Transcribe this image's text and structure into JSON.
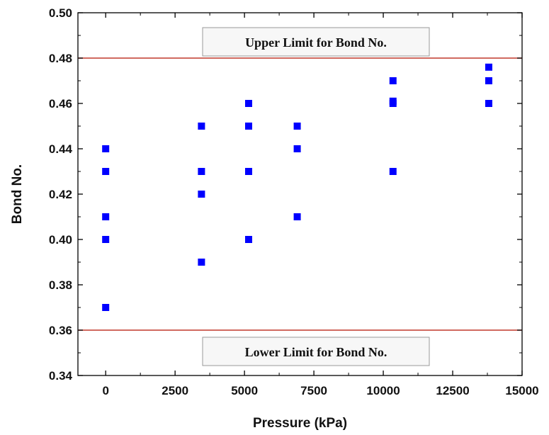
{
  "chart_data": {
    "type": "scatter",
    "title": "",
    "xlabel": "Pressure (kPa)",
    "ylabel": "Bond No.",
    "xlim": [
      -1000,
      15000
    ],
    "ylim": [
      0.34,
      0.5
    ],
    "xticks": [
      0,
      2500,
      5000,
      7500,
      10000,
      12500,
      15000
    ],
    "xtick_labels": [
      "0",
      "2500",
      "5000",
      "7500",
      "10000",
      "12500",
      "15000"
    ],
    "yticks": [
      0.34,
      0.36,
      0.38,
      0.4,
      0.42,
      0.44,
      0.46,
      0.48,
      0.5
    ],
    "ytick_labels": [
      "0.34",
      "0.36",
      "0.38",
      "0.40",
      "0.42",
      "0.44",
      "0.46",
      "0.48",
      "0.50"
    ],
    "grid": false,
    "legend": "none",
    "marker_color": "#0000ff",
    "line_color": "#c0392b",
    "points": [
      {
        "x": 0,
        "y": 0.44
      },
      {
        "x": 0,
        "y": 0.43
      },
      {
        "x": 0,
        "y": 0.41
      },
      {
        "x": 0,
        "y": 0.4
      },
      {
        "x": 0,
        "y": 0.37
      },
      {
        "x": 3450,
        "y": 0.45
      },
      {
        "x": 3450,
        "y": 0.43
      },
      {
        "x": 3450,
        "y": 0.42
      },
      {
        "x": 3450,
        "y": 0.39
      },
      {
        "x": 5150,
        "y": 0.46
      },
      {
        "x": 5150,
        "y": 0.45
      },
      {
        "x": 5150,
        "y": 0.43
      },
      {
        "x": 5150,
        "y": 0.4
      },
      {
        "x": 6900,
        "y": 0.45
      },
      {
        "x": 6900,
        "y": 0.44
      },
      {
        "x": 6900,
        "y": 0.41
      },
      {
        "x": 10350,
        "y": 0.47
      },
      {
        "x": 10350,
        "y": 0.461
      },
      {
        "x": 10350,
        "y": 0.46
      },
      {
        "x": 10350,
        "y": 0.43
      },
      {
        "x": 13800,
        "y": 0.476
      },
      {
        "x": 13800,
        "y": 0.47
      },
      {
        "x": 13800,
        "y": 0.46
      }
    ],
    "reference_lines": [
      {
        "y": 0.48,
        "label": "Upper Limit for Bond No."
      },
      {
        "y": 0.36,
        "label": "Lower Limit for Bond No."
      }
    ]
  }
}
